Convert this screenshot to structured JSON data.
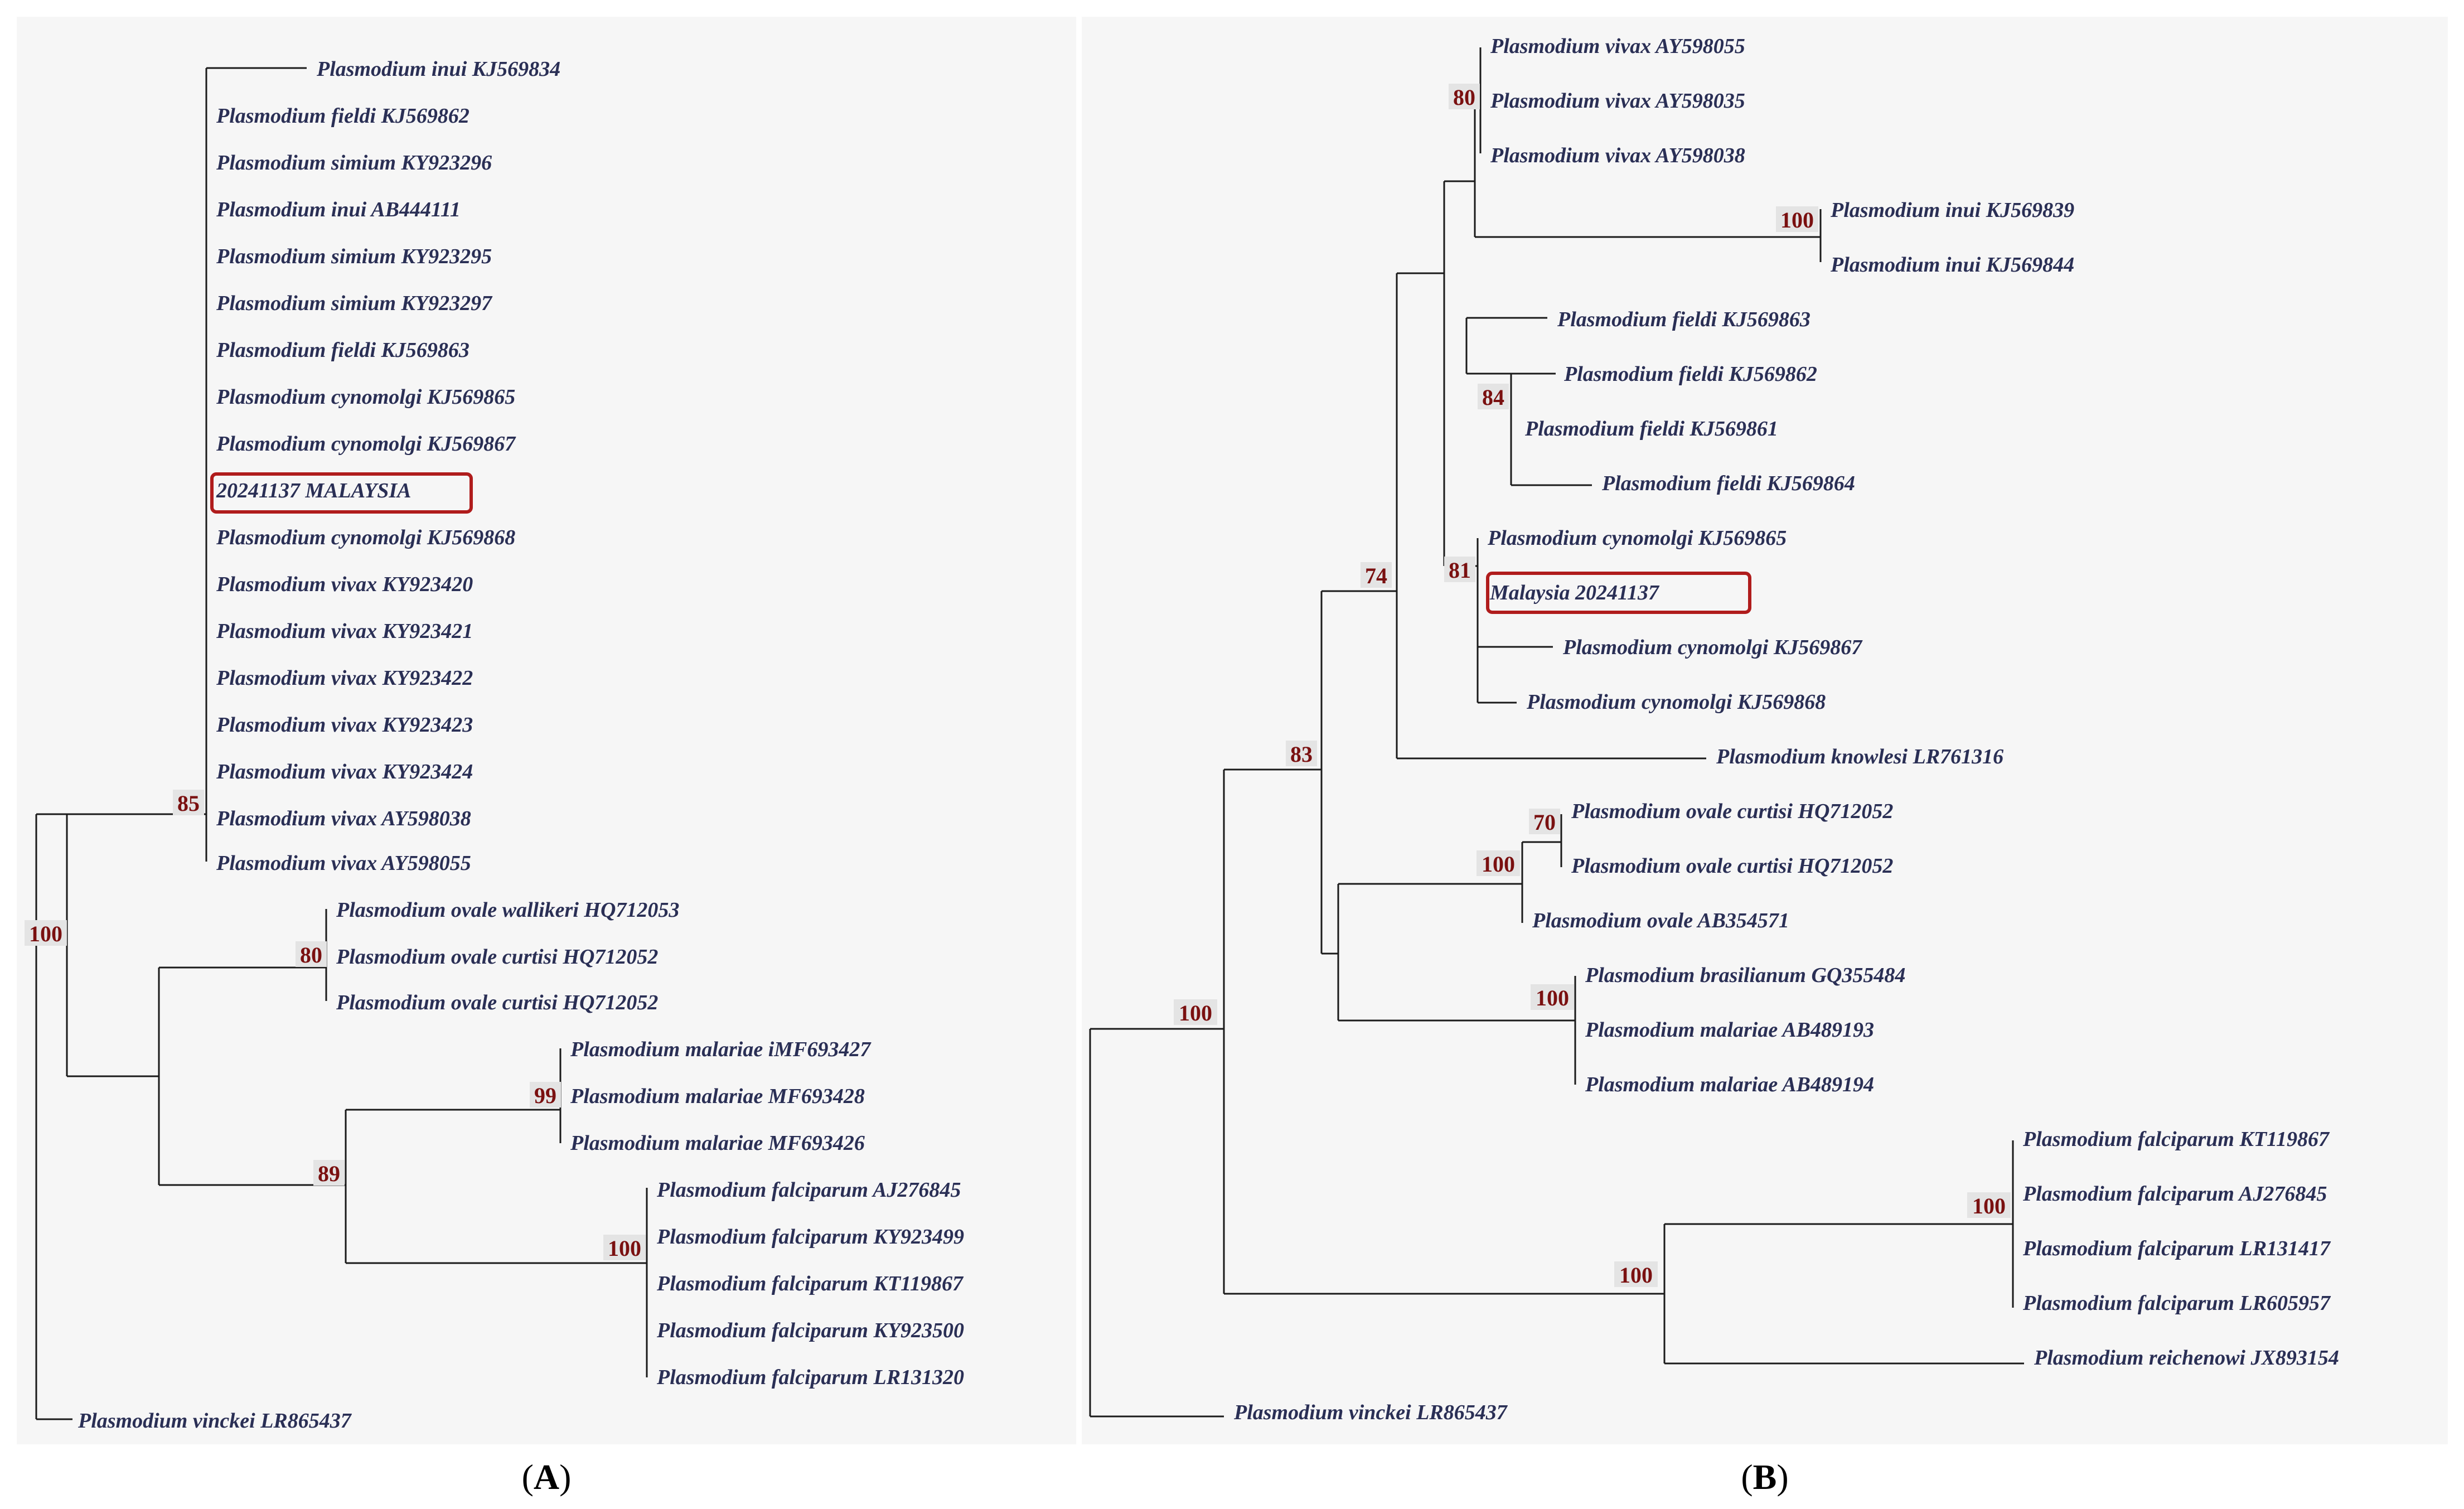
{
  "figure": {
    "panels": [
      {
        "id": "A",
        "label": "A",
        "highlighted_taxon": "20241137 MALAYSIA",
        "taxa": [
          "Plasmodium inui KJ569834",
          "Plasmodium fieldi KJ569862",
          "Plasmodium simium KY923296",
          "Plasmodium inui AB444111",
          "Plasmodium simium KY923295",
          "Plasmodium simium KY923297",
          "Plasmodium fieldi KJ569863",
          "Plasmodium cynomolgi KJ569865",
          "Plasmodium cynomolgi KJ569867",
          "20241137 MALAYSIA",
          "Plasmodium cynomolgi KJ569868",
          "Plasmodium vivax KY923420",
          "Plasmodium vivax KY923421",
          "Plasmodium vivax KY923422",
          "Plasmodium vivax KY923423",
          "Plasmodium vivax KY923424",
          "Plasmodium vivax AY598038",
          "Plasmodium vivax AY598055",
          "Plasmodium ovale wallikeri HQ712053",
          "Plasmodium ovale curtisi  HQ712052",
          "Plasmodium ovale curtisi HQ712052",
          "Plasmodium malariae iMF693427",
          "Plasmodium malariae MF693428",
          "Plasmodium malariae MF693426",
          "Plasmodium falciparum AJ276845",
          "Plasmodium falciparum KY923499",
          "Plasmodium falciparum KT119867",
          "Plasmodium falciparum KY923500",
          "Plasmodium falciparum LR131320",
          "Plasmodium vinckei LR865437"
        ],
        "bootstrap": [
          "85",
          "100",
          "80",
          "99",
          "89",
          "100"
        ]
      },
      {
        "id": "B",
        "label": "B",
        "highlighted_taxon": "Malaysia 20241137",
        "taxa": [
          "Plasmodium vivax AY598055",
          "Plasmodium vivax AY598035",
          "Plasmodium vivax AY598038",
          "Plasmodium inui KJ569839",
          "Plasmodium inui KJ569844",
          "Plasmodium fieldi  KJ569863",
          "Plasmodium fieldi KJ569862",
          "Plasmodium fieldi KJ569861",
          "Plasmodium fieldi KJ569864",
          "Plasmodium cynomolgi KJ569865",
          "Malaysia 20241137",
          "Plasmodium cynomolgi KJ569867",
          "Plasmodium cynomolgi KJ569868",
          "Plasmodium knowlesi LR761316",
          "Plasmodium ovale curtisi HQ712052",
          "Plasmodium ovale curtisi HQ712052",
          "Plasmodium ovale AB354571",
          "Plasmodium brasilianum GQ355484",
          "Plasmodium malariae AB489193",
          "Plasmodium malariae AB489194",
          "Plasmodium falciparum KT119867",
          "Plasmodium falciparum AJ276845",
          "Plasmodium falciparum LR131417",
          "Plasmodium falciparum LR605957",
          "Plasmodium reichenowi JX893154",
          "Plasmodium vinckei LR865437"
        ],
        "bootstrap": [
          "80",
          "100",
          "84",
          "81",
          "74",
          "83",
          "70",
          "100",
          "100",
          "100",
          "100",
          "100"
        ]
      }
    ]
  },
  "colors": {
    "taxon_text": "#2a2f55",
    "bootstrap_text": "#7a1010",
    "highlight_box": "#b01c1c",
    "branch": "#1a1a1a"
  }
}
